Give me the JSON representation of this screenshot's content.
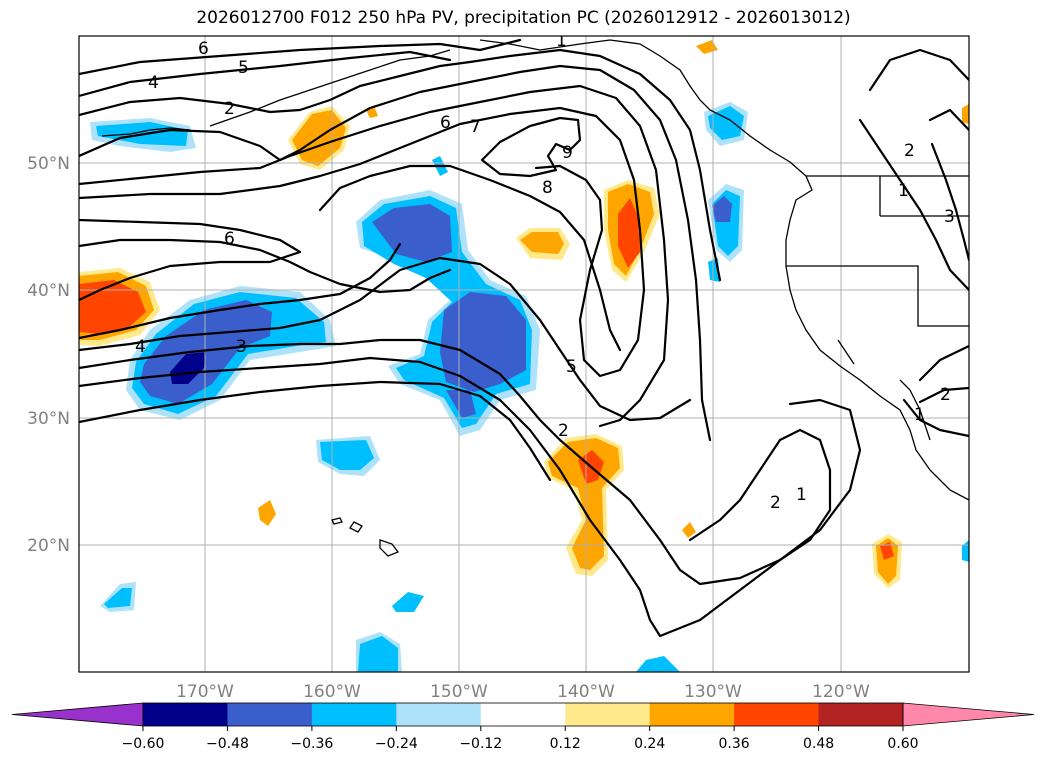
{
  "title": "2026012700 F012 250 hPa PV, precipitation PC (2026012912 - 2026013012)",
  "lat_labels": [
    "50°N",
    "40°N",
    "30°N",
    "20°N"
  ],
  "lon_labels": [
    "170°W",
    "160°W",
    "150°W",
    "140°W",
    "130°W",
    "120°W"
  ],
  "colorbar": {
    "ticks": [
      "−0.60",
      "−0.48",
      "−0.36",
      "−0.24",
      "−0.12",
      "0.12",
      "0.24",
      "0.36",
      "0.48",
      "0.60"
    ],
    "colors": [
      "#9932CC",
      "#00008B",
      "#3A5FCD",
      "#00BFFF",
      "#ADE2FA",
      "#FFFFFF",
      "#FFE98A",
      "#FFA500",
      "#FF4500",
      "#B22222",
      "#FF88AA"
    ]
  },
  "contour_labels": [
    "6",
    "5",
    "4",
    "2",
    "1",
    "6",
    "7",
    "9",
    "8",
    "6",
    "4",
    "3",
    "5",
    "2",
    "2",
    "1",
    "2",
    "1",
    "3",
    "2",
    "1"
  ]
}
